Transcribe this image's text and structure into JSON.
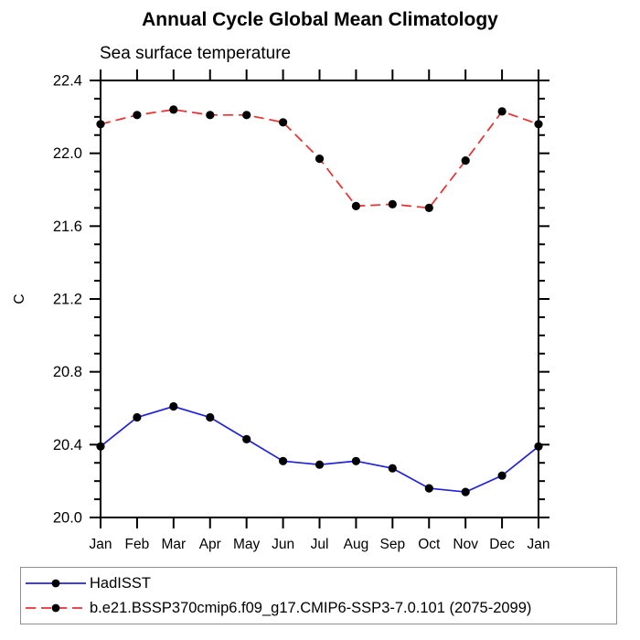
{
  "title": "Annual Cycle Global Mean Climatology",
  "subtitle": "Sea surface temperature",
  "chart_data": {
    "type": "line",
    "categories": [
      "Jan",
      "Feb",
      "Mar",
      "Apr",
      "May",
      "Jun",
      "Jul",
      "Aug",
      "Sep",
      "Oct",
      "Nov",
      "Dec",
      "Jan"
    ],
    "xlabel": "",
    "ylabel": "C",
    "ylim": [
      20.0,
      22.4
    ],
    "ytick_major": 0.4,
    "ytick_minor": 0.1,
    "y_tick_labels": [
      "20.0",
      "20.4",
      "20.8",
      "21.2",
      "21.6",
      "22.0",
      "22.4"
    ],
    "grid": false,
    "legend_position": "bottom-left-box",
    "series": [
      {
        "name": "HadISST",
        "color": "#2222dd",
        "dash": "solid",
        "marker": "filled-circle",
        "marker_color": "#000000",
        "values": [
          20.39,
          20.55,
          20.61,
          20.55,
          20.43,
          20.31,
          20.29,
          20.31,
          20.27,
          20.16,
          20.14,
          20.23,
          20.39
        ]
      },
      {
        "name": "b.e21.BSSP370cmip6.f09_g17.CMIP6-SSP3-7.0.101 (2075-2099)",
        "color": "#ee2e2e",
        "dash": "dashed",
        "marker": "filled-circle",
        "marker_color": "#000000",
        "values": [
          22.16,
          22.21,
          22.24,
          22.21,
          22.21,
          22.17,
          21.97,
          21.71,
          21.72,
          21.7,
          21.96,
          22.23,
          22.16
        ]
      }
    ],
    "colors": {
      "axis": "#000000",
      "text": "#000000",
      "legend_border": "#8e8e8e",
      "background": "#ffffff"
    }
  }
}
